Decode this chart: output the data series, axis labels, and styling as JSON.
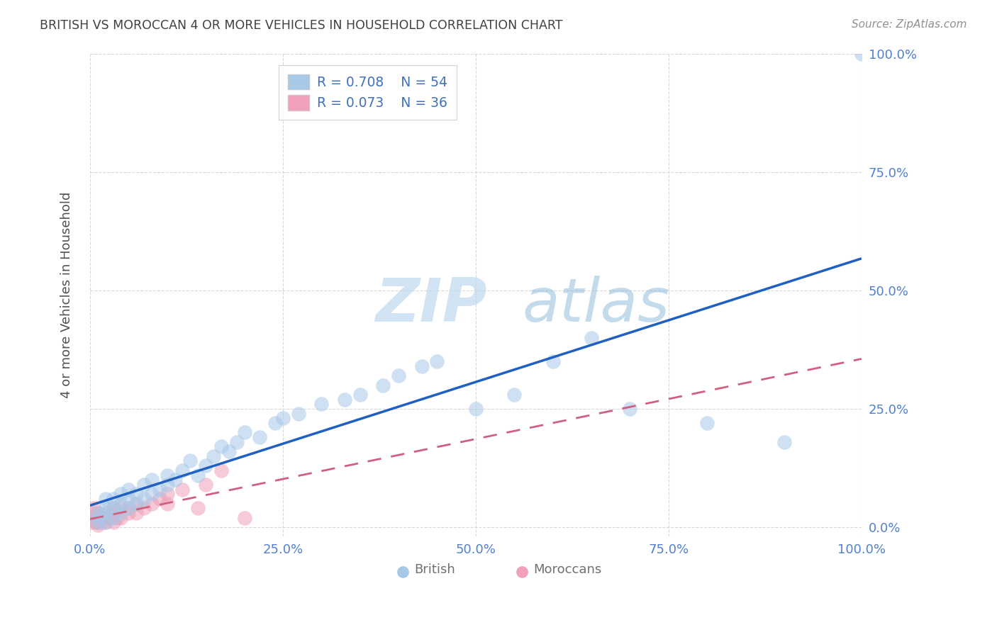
{
  "title": "BRITISH VS MOROCCAN 4 OR MORE VEHICLES IN HOUSEHOLD CORRELATION CHART",
  "source": "Source: ZipAtlas.com",
  "ylabel": "4 or more Vehicles in Household",
  "watermark_zip": "ZIP",
  "watermark_atlas": "atlas",
  "british_R": 0.708,
  "british_N": 54,
  "moroccan_R": 0.073,
  "moroccan_N": 36,
  "british_color": "#a8c8e8",
  "moroccan_color": "#f0a0b8",
  "british_line_color": "#2060c0",
  "moroccan_line_color": "#d06080",
  "title_color": "#404040",
  "source_color": "#909090",
  "legend_text_color": "#4070c0",
  "axis_tick_color": "#5080d0",
  "grid_color": "#d8d8d8",
  "background_color": "#ffffff",
  "british_x": [
    1,
    1,
    1,
    2,
    2,
    2,
    2,
    3,
    3,
    3,
    4,
    4,
    4,
    5,
    5,
    5,
    6,
    6,
    7,
    7,
    8,
    8,
    9,
    10,
    10,
    11,
    12,
    13,
    14,
    15,
    16,
    17,
    18,
    19,
    20,
    22,
    24,
    25,
    27,
    30,
    33,
    35,
    38,
    40,
    43,
    45,
    50,
    55,
    60,
    65,
    70,
    80,
    90,
    100
  ],
  "british_y": [
    1,
    2,
    3,
    1,
    3,
    4,
    6,
    2,
    4,
    6,
    3,
    5,
    7,
    4,
    6,
    8,
    5,
    7,
    6,
    9,
    7,
    10,
    8,
    9,
    11,
    10,
    12,
    14,
    11,
    13,
    15,
    17,
    16,
    18,
    20,
    19,
    22,
    23,
    24,
    26,
    27,
    28,
    30,
    32,
    34,
    35,
    25,
    28,
    35,
    40,
    25,
    22,
    18,
    100
  ],
  "moroccan_x": [
    0.2,
    0.3,
    0.5,
    0.5,
    0.7,
    0.8,
    1,
    1,
    1,
    1,
    1.5,
    1.5,
    2,
    2,
    2,
    2.5,
    3,
    3,
    3,
    3.5,
    4,
    4,
    5,
    5,
    6,
    6,
    7,
    8,
    9,
    10,
    10,
    12,
    14,
    15,
    17,
    20
  ],
  "moroccan_y": [
    1,
    2,
    3,
    4,
    1,
    2,
    0.5,
    1,
    2,
    3,
    1,
    2,
    1,
    2,
    3,
    2,
    1,
    3,
    4,
    2,
    2,
    4,
    3,
    4,
    3,
    5,
    4,
    5,
    6,
    5,
    7,
    8,
    4,
    9,
    12,
    2
  ]
}
